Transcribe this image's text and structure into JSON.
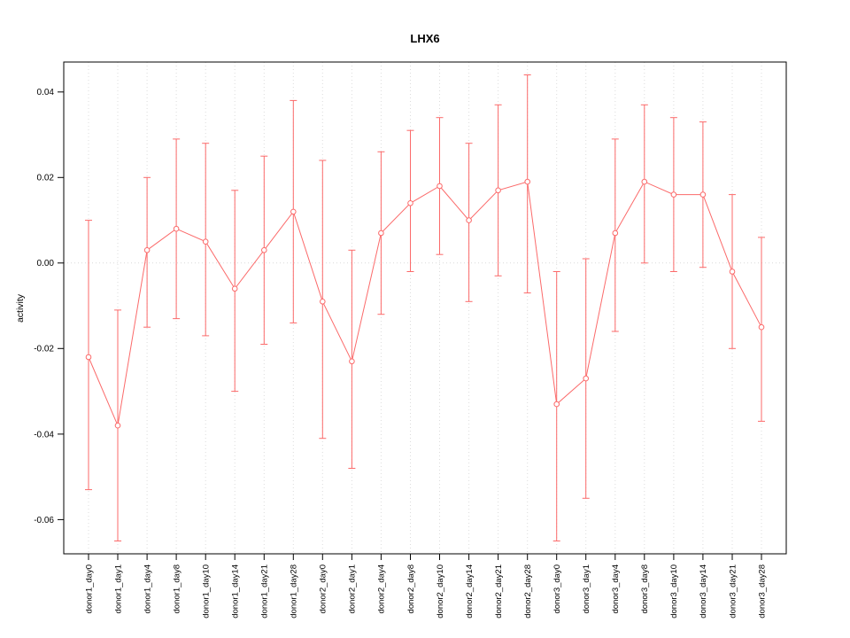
{
  "chart_data": {
    "type": "line",
    "title": "LHX6",
    "xlabel": "",
    "ylabel": "activity",
    "ylim": [
      -0.068,
      0.047
    ],
    "yticks": [
      -0.06,
      -0.04,
      -0.02,
      0,
      0.02,
      0.04
    ],
    "grid": "vertical dotted gridlines at each category plus dotted horizontal line at y=0",
    "legend": "none",
    "colors": {
      "series": "#fb6a6a",
      "grid": "#dcdcdc",
      "zero_line": "#d9d9d9",
      "axis": "#000000"
    },
    "categories": [
      "donor1_day0",
      "donor1_day1",
      "donor1_day4",
      "donor1_day8",
      "donor1_day10",
      "donor1_day14",
      "donor1_day21",
      "donor1_day28",
      "donor2_day0",
      "donor2_day1",
      "donor2_day4",
      "donor2_day8",
      "donor2_day10",
      "donor2_day14",
      "donor2_day21",
      "donor2_day28",
      "donor3_day0",
      "donor3_day1",
      "donor3_day4",
      "donor3_day8",
      "donor3_day10",
      "donor3_day14",
      "donor3_day21",
      "donor3_day28"
    ],
    "series": [
      {
        "name": "activity",
        "values": [
          -0.022,
          -0.038,
          0.003,
          0.008,
          0.005,
          -0.006,
          0.003,
          0.012,
          -0.009,
          -0.023,
          0.007,
          0.014,
          0.018,
          0.01,
          0.017,
          0.019,
          -0.033,
          -0.027,
          0.007,
          0.019,
          0.016,
          0.016,
          -0.002,
          -0.015
        ],
        "ci_high": [
          0.01,
          -0.011,
          0.02,
          0.029,
          0.028,
          0.017,
          0.025,
          0.038,
          0.024,
          0.003,
          0.026,
          0.031,
          0.034,
          0.028,
          0.037,
          0.044,
          -0.002,
          0.001,
          0.029,
          0.037,
          0.034,
          0.033,
          0.016,
          0.006
        ],
        "ci_low": [
          -0.053,
          -0.065,
          -0.015,
          -0.013,
          -0.017,
          -0.03,
          -0.019,
          -0.014,
          -0.041,
          -0.048,
          -0.012,
          -0.002,
          0.002,
          -0.009,
          -0.003,
          -0.007,
          -0.065,
          -0.055,
          -0.016,
          0.0,
          -0.002,
          -0.001,
          -0.02,
          -0.037
        ]
      }
    ]
  }
}
